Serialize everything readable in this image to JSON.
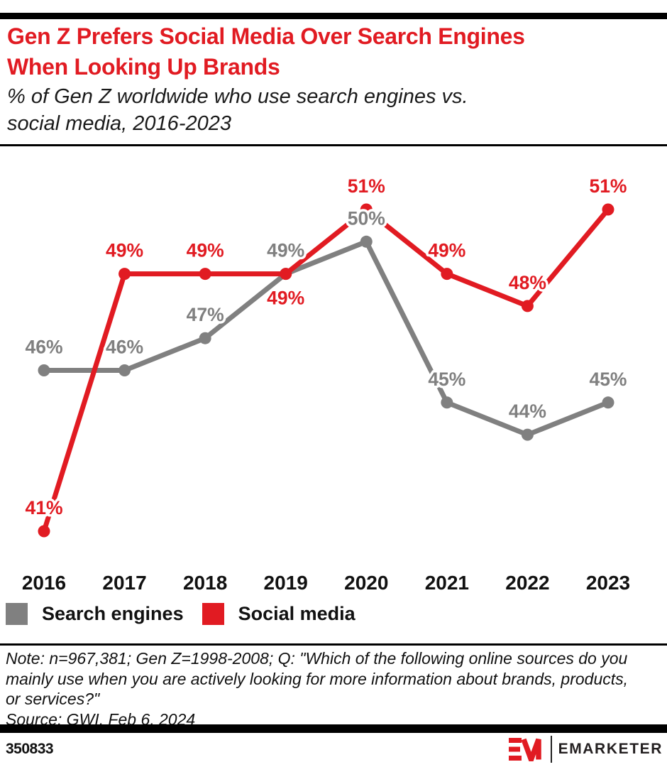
{
  "colors": {
    "accent_red": "#e11b22",
    "series_gray": "#808080",
    "bar_black": "#000000"
  },
  "chart_data": {
    "type": "line",
    "title": "Gen Z Prefers Social Media Over Search Engines\nWhen Looking Up Brands",
    "subtitle": "% of Gen Z worldwide who use search engines vs.\nsocial media, 2016-2023",
    "categories": [
      "2016",
      "2017",
      "2018",
      "2019",
      "2020",
      "2021",
      "2022",
      "2023"
    ],
    "unit": "%",
    "ylim": [
      38,
      54
    ],
    "grid": false,
    "axes_shown": false,
    "legend_position": "bottom-left",
    "series": [
      {
        "name": "Search engines",
        "color": "#808080",
        "values": [
          46,
          46,
          47,
          49,
          50,
          45,
          44,
          45
        ],
        "label_side": [
          "above",
          "above",
          "above",
          "above",
          "above",
          "above",
          "above",
          "above"
        ]
      },
      {
        "name": "Social media",
        "color": "#e11b22",
        "values": [
          41,
          49,
          49,
          49,
          51,
          49,
          48,
          51
        ],
        "label_side": [
          "above",
          "above",
          "above",
          "below",
          "above",
          "above",
          "above",
          "above"
        ]
      }
    ]
  },
  "notes": {
    "note": "Note: n=967,381; Gen Z=1998-2008; Q: \"Which of the following online sources do you\nmainly use when you are actively looking for more information about brands, products,\nor services?\"",
    "source": "Source: GWI, Feb 6, 2024"
  },
  "footer": {
    "chart_id": "350833",
    "brand": "EMARKETER"
  }
}
